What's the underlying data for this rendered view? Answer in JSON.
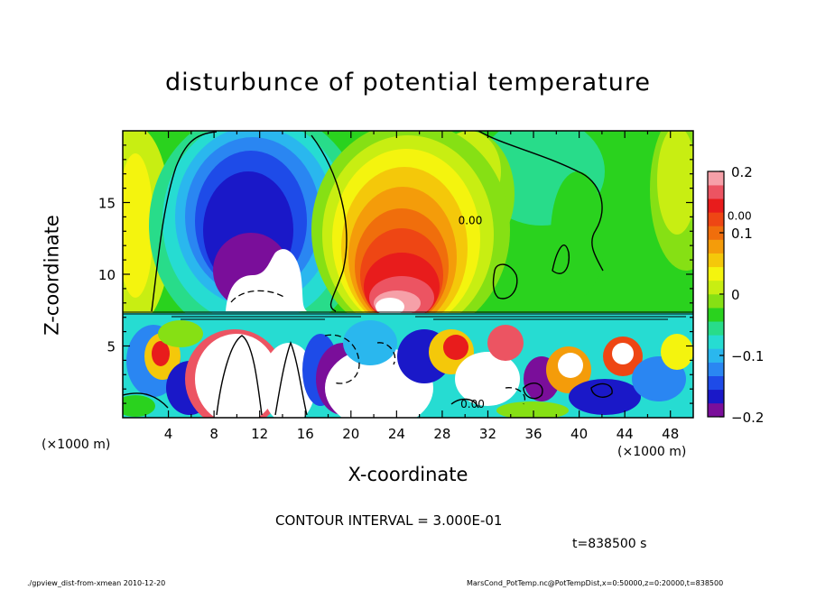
{
  "chart_data": {
    "type": "heatmap",
    "title": "disturbunce of potential temperature",
    "xlabel": "X-coordinate",
    "ylabel": "Z-coordinate",
    "x_unit_label": "(×1000 m)",
    "y_unit_label": "(×1000 m)",
    "xlim": [
      0,
      50
    ],
    "ylim": [
      0,
      20
    ],
    "xticks": [
      "4",
      "8",
      "12",
      "16",
      "20",
      "24",
      "28",
      "32",
      "36",
      "40",
      "44",
      "48"
    ],
    "yticks": [
      "5",
      "10",
      "15"
    ],
    "colorbar": {
      "min": -0.2,
      "max": 0.2,
      "ticks": [
        "0.2",
        "0.1",
        "0",
        "−0.1",
        "−0.2"
      ],
      "colors": [
        "#7a0e9a",
        "#1a18c8",
        "#1e4be8",
        "#2a86f2",
        "#2ab7ee",
        "#26dcd2",
        "#28dc8a",
        "#2ad21e",
        "#86e014",
        "#c8ee12",
        "#f4f40e",
        "#f4c80a",
        "#f49c0a",
        "#f06e0c",
        "#ee4614",
        "#e81c1c",
        "#ec5462",
        "#f6a0a8"
      ]
    },
    "contour_labels": [
      "0.00",
      "0.00",
      "0.00"
    ],
    "contour_interval": "CONTOUR INTERVAL = 3.000E-01",
    "features": [
      {
        "name": "cold anomaly",
        "x": 10,
        "z": 13,
        "value": -0.2
      },
      {
        "name": "warm anomaly",
        "x": 25,
        "z": 10,
        "value": 0.2
      }
    ]
  },
  "annotations": {
    "contour_note": "CONTOUR INTERVAL = 3.000E-01",
    "time": "t=838500 s",
    "footer_left": "./gpview_dist-from-xmean  2010-12-20",
    "footer_right": "MarsCond_PotTemp.nc@PotTempDist,x=0:50000,z=0:20000,t=838500"
  }
}
